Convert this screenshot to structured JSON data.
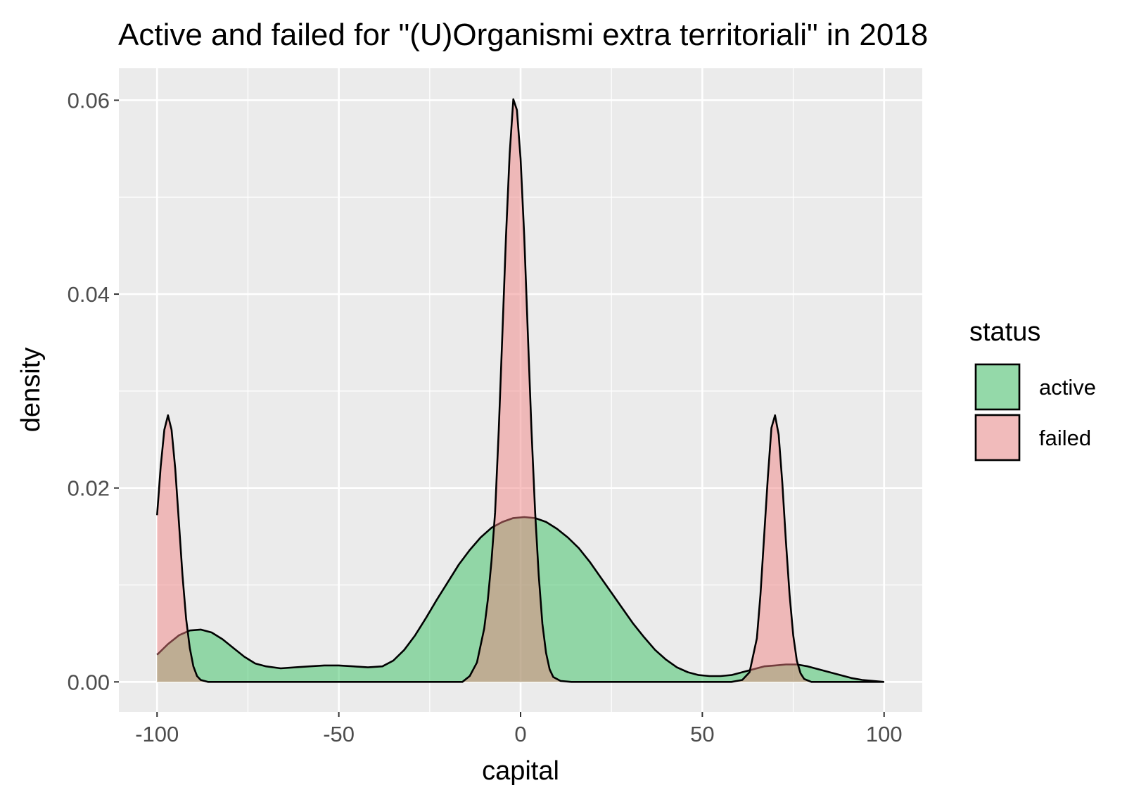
{
  "chart_data": {
    "type": "area",
    "title": "Active and failed for \"(U)Organismi extra territoriali\" in 2018",
    "xlabel": "capital",
    "ylabel": "density",
    "xlim": [
      -110.5,
      110.5
    ],
    "ylim": [
      -0.0031,
      0.0633
    ],
    "x_ticks": [
      -100,
      -50,
      0,
      50,
      100
    ],
    "x_tick_labels": [
      "-100",
      "-50",
      "0",
      "50",
      "100"
    ],
    "y_ticks": [
      0.0,
      0.02,
      0.04,
      0.06
    ],
    "y_tick_labels": [
      "0.00",
      "0.02",
      "0.04",
      "0.06"
    ],
    "grid": true,
    "legend": {
      "title": "status",
      "position": "right"
    },
    "series": [
      {
        "name": "active",
        "color": "#2DBE5A",
        "points": [
          [
            -100,
            0.0028
          ],
          [
            -97,
            0.0039
          ],
          [
            -94,
            0.0048
          ],
          [
            -91,
            0.0053
          ],
          [
            -88,
            0.0054
          ],
          [
            -85,
            0.0051
          ],
          [
            -82,
            0.0044
          ],
          [
            -79,
            0.0035
          ],
          [
            -76,
            0.0026
          ],
          [
            -73,
            0.0019
          ],
          [
            -70,
            0.0016
          ],
          [
            -66,
            0.0014
          ],
          [
            -62,
            0.0015
          ],
          [
            -58,
            0.0016
          ],
          [
            -54,
            0.0017
          ],
          [
            -50,
            0.0017
          ],
          [
            -46,
            0.0016
          ],
          [
            -42,
            0.0015
          ],
          [
            -38,
            0.0016
          ],
          [
            -35,
            0.0022
          ],
          [
            -32,
            0.0033
          ],
          [
            -29,
            0.0048
          ],
          [
            -26,
            0.0066
          ],
          [
            -23,
            0.0085
          ],
          [
            -20,
            0.0103
          ],
          [
            -17,
            0.0121
          ],
          [
            -14,
            0.0136
          ],
          [
            -11,
            0.0149
          ],
          [
            -8,
            0.0159
          ],
          [
            -5,
            0.0165
          ],
          [
            -2,
            0.0169
          ],
          [
            1,
            0.017
          ],
          [
            4,
            0.0169
          ],
          [
            7,
            0.0165
          ],
          [
            10,
            0.0158
          ],
          [
            13,
            0.0149
          ],
          [
            16,
            0.0138
          ],
          [
            19,
            0.0124
          ],
          [
            22,
            0.0108
          ],
          [
            25,
            0.0092
          ],
          [
            28,
            0.0076
          ],
          [
            31,
            0.006
          ],
          [
            34,
            0.0046
          ],
          [
            37,
            0.0033
          ],
          [
            40,
            0.0023
          ],
          [
            43,
            0.0015
          ],
          [
            46,
            0.001
          ],
          [
            49,
            0.0007
          ],
          [
            52,
            0.0006
          ],
          [
            55,
            0.0006
          ],
          [
            58,
            0.0007
          ],
          [
            61,
            0.001
          ],
          [
            64,
            0.0013
          ],
          [
            67,
            0.0016
          ],
          [
            70,
            0.0017
          ],
          [
            73,
            0.0018
          ],
          [
            76,
            0.0018
          ],
          [
            79,
            0.0016
          ],
          [
            82,
            0.0013
          ],
          [
            85,
            0.001
          ],
          [
            88,
            0.0007
          ],
          [
            91,
            0.0004
          ],
          [
            94,
            0.0002
          ],
          [
            97,
            0.0001
          ],
          [
            100,
            0.0
          ]
        ]
      },
      {
        "name": "failed",
        "color": "#F08080",
        "points": [
          [
            -100,
            0.0172
          ],
          [
            -99,
            0.0222
          ],
          [
            -98,
            0.026
          ],
          [
            -97,
            0.0275
          ],
          [
            -96,
            0.026
          ],
          [
            -95,
            0.022
          ],
          [
            -94,
            0.0165
          ],
          [
            -93,
            0.011
          ],
          [
            -92,
            0.0065
          ],
          [
            -91,
            0.0035
          ],
          [
            -90,
            0.0016
          ],
          [
            -89,
            0.0006
          ],
          [
            -88,
            0.0002
          ],
          [
            -86,
            0.0
          ],
          [
            -20,
            0.0
          ],
          [
            -16,
            0.0
          ],
          [
            -14,
            0.0006
          ],
          [
            -12,
            0.002
          ],
          [
            -10,
            0.0055
          ],
          [
            -9,
            0.0085
          ],
          [
            -8,
            0.0125
          ],
          [
            -7,
            0.0175
          ],
          [
            -6,
            0.026
          ],
          [
            -5,
            0.036
          ],
          [
            -4,
            0.046
          ],
          [
            -3,
            0.0545
          ],
          [
            -2,
            0.0601
          ],
          [
            -1,
            0.059
          ],
          [
            0,
            0.054
          ],
          [
            1,
            0.046
          ],
          [
            2,
            0.036
          ],
          [
            3,
            0.026
          ],
          [
            4,
            0.0175
          ],
          [
            5,
            0.011
          ],
          [
            6,
            0.006
          ],
          [
            7,
            0.003
          ],
          [
            8,
            0.0013
          ],
          [
            9,
            0.0005
          ],
          [
            11,
            0.0001
          ],
          [
            14,
            0.0
          ],
          [
            58,
            0.0
          ],
          [
            61,
            0.0002
          ],
          [
            63,
            0.001
          ],
          [
            65,
            0.0045
          ],
          [
            66,
            0.009
          ],
          [
            67,
            0.015
          ],
          [
            68,
            0.021
          ],
          [
            69,
            0.0262
          ],
          [
            70,
            0.0275
          ],
          [
            71,
            0.0255
          ],
          [
            72,
            0.0205
          ],
          [
            73,
            0.0145
          ],
          [
            74,
            0.009
          ],
          [
            75,
            0.0048
          ],
          [
            76,
            0.0022
          ],
          [
            77,
            0.0009
          ],
          [
            78,
            0.0003
          ],
          [
            80,
            0.0
          ],
          [
            100,
            0.0
          ]
        ]
      }
    ]
  }
}
